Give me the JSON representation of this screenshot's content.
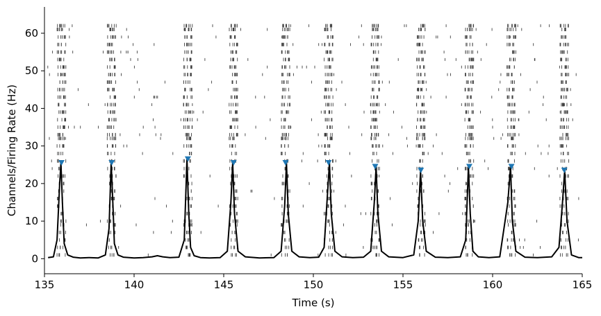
{
  "chart_data": {
    "type": "line",
    "title": "",
    "xlabel": "Time (s)",
    "ylabel": "Channels/Firing Rate (Hz)",
    "xlim": [
      135,
      165
    ],
    "ylim": [
      -4,
      67
    ],
    "xticks": [
      135,
      140,
      145,
      150,
      155,
      160,
      165
    ],
    "yticks": [
      0,
      10,
      20,
      30,
      40,
      50,
      60
    ],
    "grid": false,
    "legend": "none",
    "colors": {
      "rate_line": "#000000",
      "peak_marker": "#1f77b4",
      "spike": "#000000"
    },
    "series": [
      {
        "kind": "line",
        "x": [
          135.2,
          135.5,
          135.7,
          135.85,
          135.92,
          136.0,
          136.1,
          136.3,
          136.6,
          137.0,
          137.5,
          138.0,
          138.4,
          138.6,
          138.72,
          138.82,
          138.9,
          139.1,
          139.4,
          140.0,
          140.5,
          141.0,
          141.3,
          141.6,
          142.0,
          142.5,
          142.8,
          142.95,
          143.05,
          143.15,
          143.35,
          143.7,
          144.2,
          144.8,
          145.2,
          145.4,
          145.5,
          145.6,
          145.8,
          146.2,
          147.0,
          147.8,
          148.2,
          148.4,
          148.5,
          148.6,
          148.8,
          149.2,
          149.8,
          150.3,
          150.6,
          150.8,
          150.9,
          151.0,
          151.2,
          151.6,
          152.2,
          152.8,
          153.2,
          153.4,
          153.5,
          153.6,
          153.8,
          154.2,
          155.0,
          155.6,
          155.85,
          155.98,
          156.1,
          156.3,
          156.8,
          157.5,
          158.2,
          158.5,
          158.65,
          158.75,
          158.9,
          159.2,
          159.8,
          160.4,
          160.85,
          161.0,
          161.1,
          161.3,
          161.8,
          162.5,
          163.3,
          163.7,
          163.9,
          164.02,
          164.15,
          164.4,
          164.8,
          165.0
        ],
        "y": [
          0.3,
          0.5,
          5,
          20,
          25.5,
          15,
          4,
          1,
          0.4,
          0.2,
          0.3,
          0.2,
          1,
          8,
          25.5,
          14,
          4,
          1,
          0.4,
          0.2,
          0.3,
          0.5,
          0.8,
          0.5,
          0.3,
          0.4,
          5,
          26.5,
          12,
          3,
          0.8,
          0.3,
          0.2,
          0.3,
          2,
          15,
          25.5,
          12,
          2,
          0.5,
          0.2,
          0.3,
          2,
          14,
          25.5,
          12,
          2,
          0.5,
          0.3,
          0.4,
          3,
          18,
          25.5,
          12,
          2,
          0.5,
          0.3,
          0.4,
          2,
          15,
          24.5,
          12,
          2,
          0.5,
          0.3,
          1,
          10,
          23.5,
          10,
          2,
          0.4,
          0.3,
          0.5,
          5,
          24.5,
          12,
          2,
          0.5,
          0.3,
          0.5,
          15,
          24.5,
          10,
          2,
          0.4,
          0.3,
          0.5,
          3,
          15,
          23.5,
          10,
          1,
          0.3,
          0.3
        ]
      },
      {
        "kind": "peaks",
        "x": [
          135.95,
          138.75,
          143.0,
          145.55,
          148.45,
          150.85,
          153.45,
          156.0,
          158.7,
          161.05,
          164.0
        ],
        "y": [
          25.5,
          25.5,
          26.5,
          25.5,
          25.5,
          25.5,
          24.5,
          23.5,
          24.5,
          24.5,
          23.5
        ]
      }
    ],
    "spike_raster": {
      "channels": [
        1,
        3,
        5,
        7,
        9,
        10,
        12,
        14,
        16,
        18,
        20,
        22,
        24,
        26,
        28,
        30,
        32,
        33,
        35,
        37,
        39,
        41,
        43,
        45,
        47,
        49,
        51,
        53,
        55,
        57,
        59,
        61,
        62
      ],
      "burst_times": [
        135.95,
        138.75,
        143.0,
        145.55,
        148.45,
        150.85,
        153.45,
        156.0,
        158.7,
        161.05,
        164.0
      ]
    }
  }
}
